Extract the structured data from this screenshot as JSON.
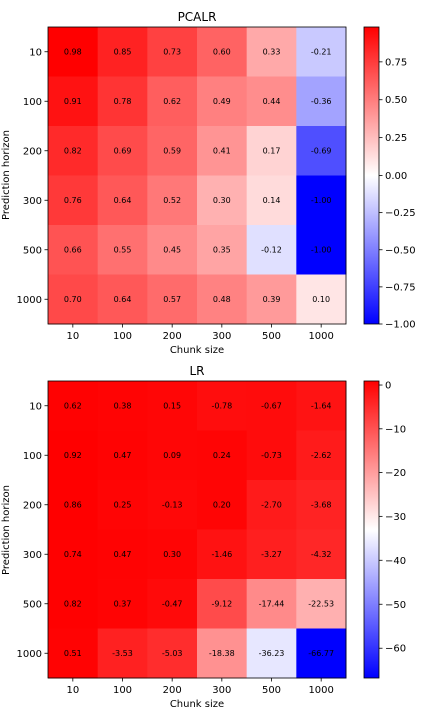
{
  "chart_data": [
    {
      "type": "heatmap",
      "title": "PCALR",
      "xlabel": "Chunk size",
      "ylabel": "Prediction horizon",
      "x_categories": [
        "10",
        "100",
        "200",
        "300",
        "500",
        "1000"
      ],
      "y_categories": [
        "10",
        "100",
        "200",
        "300",
        "500",
        "1000"
      ],
      "values": [
        [
          0.98,
          0.85,
          0.73,
          0.6,
          0.33,
          -0.21
        ],
        [
          0.91,
          0.78,
          0.62,
          0.49,
          0.44,
          -0.36
        ],
        [
          0.82,
          0.69,
          0.59,
          0.41,
          0.17,
          -0.69
        ],
        [
          0.76,
          0.64,
          0.52,
          0.3,
          0.14,
          -1.0
        ],
        [
          0.66,
          0.55,
          0.45,
          0.35,
          -0.12,
          -1.0
        ],
        [
          0.7,
          0.64,
          0.57,
          0.48,
          0.39,
          0.1
        ]
      ],
      "labels": [
        [
          "0.98",
          "0.85",
          "0.73",
          "0.60",
          "0.33",
          "-0.21"
        ],
        [
          "0.91",
          "0.78",
          "0.62",
          "0.49",
          "0.44",
          "-0.36"
        ],
        [
          "0.82",
          "0.69",
          "0.59",
          "0.41",
          "0.17",
          "-0.69"
        ],
        [
          "0.76",
          "0.64",
          "0.52",
          "0.30",
          "0.14",
          "-1.00"
        ],
        [
          "0.66",
          "0.55",
          "0.45",
          "0.35",
          "-0.12",
          "-1.00"
        ],
        [
          "0.70",
          "0.64",
          "0.57",
          "0.48",
          "0.39",
          "0.10"
        ]
      ],
      "colormap": "bwr",
      "color_center": 0,
      "vmin": -1.0,
      "vmax": 0.98,
      "colorbar_ticks": [
        0.75,
        0.5,
        0.25,
        0.0,
        -0.25,
        -0.5,
        -0.75,
        -1.0
      ],
      "colorbar_tick_labels": [
        "0.75",
        "0.50",
        "0.25",
        "0.00",
        "−0.25",
        "−0.50",
        "−0.75",
        "−1.00"
      ]
    },
    {
      "type": "heatmap",
      "title": "LR",
      "xlabel": "Chunk size",
      "ylabel": "Prediction horizon",
      "x_categories": [
        "10",
        "100",
        "200",
        "300",
        "500",
        "1000"
      ],
      "y_categories": [
        "10",
        "100",
        "200",
        "300",
        "500",
        "1000"
      ],
      "values": [
        [
          0.62,
          0.38,
          0.15,
          -0.78,
          -0.67,
          -1.64
        ],
        [
          0.92,
          0.47,
          0.09,
          0.24,
          -0.73,
          -2.62
        ],
        [
          0.86,
          0.25,
          -0.13,
          0.2,
          -2.7,
          -3.68
        ],
        [
          0.74,
          0.47,
          0.3,
          -1.46,
          -3.27,
          -4.32
        ],
        [
          0.82,
          0.37,
          -0.47,
          -9.12,
          -17.44,
          -22.53
        ],
        [
          0.51,
          -3.53,
          -5.03,
          -18.38,
          -36.23,
          -66.77
        ]
      ],
      "labels": [
        [
          "0.62",
          "0.38",
          "0.15",
          "-0.78",
          "-0.67",
          "-1.64"
        ],
        [
          "0.92",
          "0.47",
          "0.09",
          "0.24",
          "-0.73",
          "-2.62"
        ],
        [
          "0.86",
          "0.25",
          "-0.13",
          "0.20",
          "-2.70",
          "-3.68"
        ],
        [
          "0.74",
          "0.47",
          "0.30",
          "-1.46",
          "-3.27",
          "-4.32"
        ],
        [
          "0.82",
          "0.37",
          "-0.47",
          "-9.12",
          "-17.44",
          "-22.53"
        ],
        [
          "0.51",
          "-3.53",
          "-5.03",
          "-18.38",
          "-36.23",
          "-66.77"
        ]
      ],
      "colormap": "bwr",
      "color_center": -33,
      "vmin": -66.77,
      "vmax": 0.92,
      "colorbar_ticks": [
        0,
        -10,
        -20,
        -30,
        -40,
        -50,
        -60
      ],
      "colorbar_tick_labels": [
        "0",
        "−10",
        "−20",
        "−30",
        "−40",
        "−50",
        "−60"
      ]
    }
  ]
}
